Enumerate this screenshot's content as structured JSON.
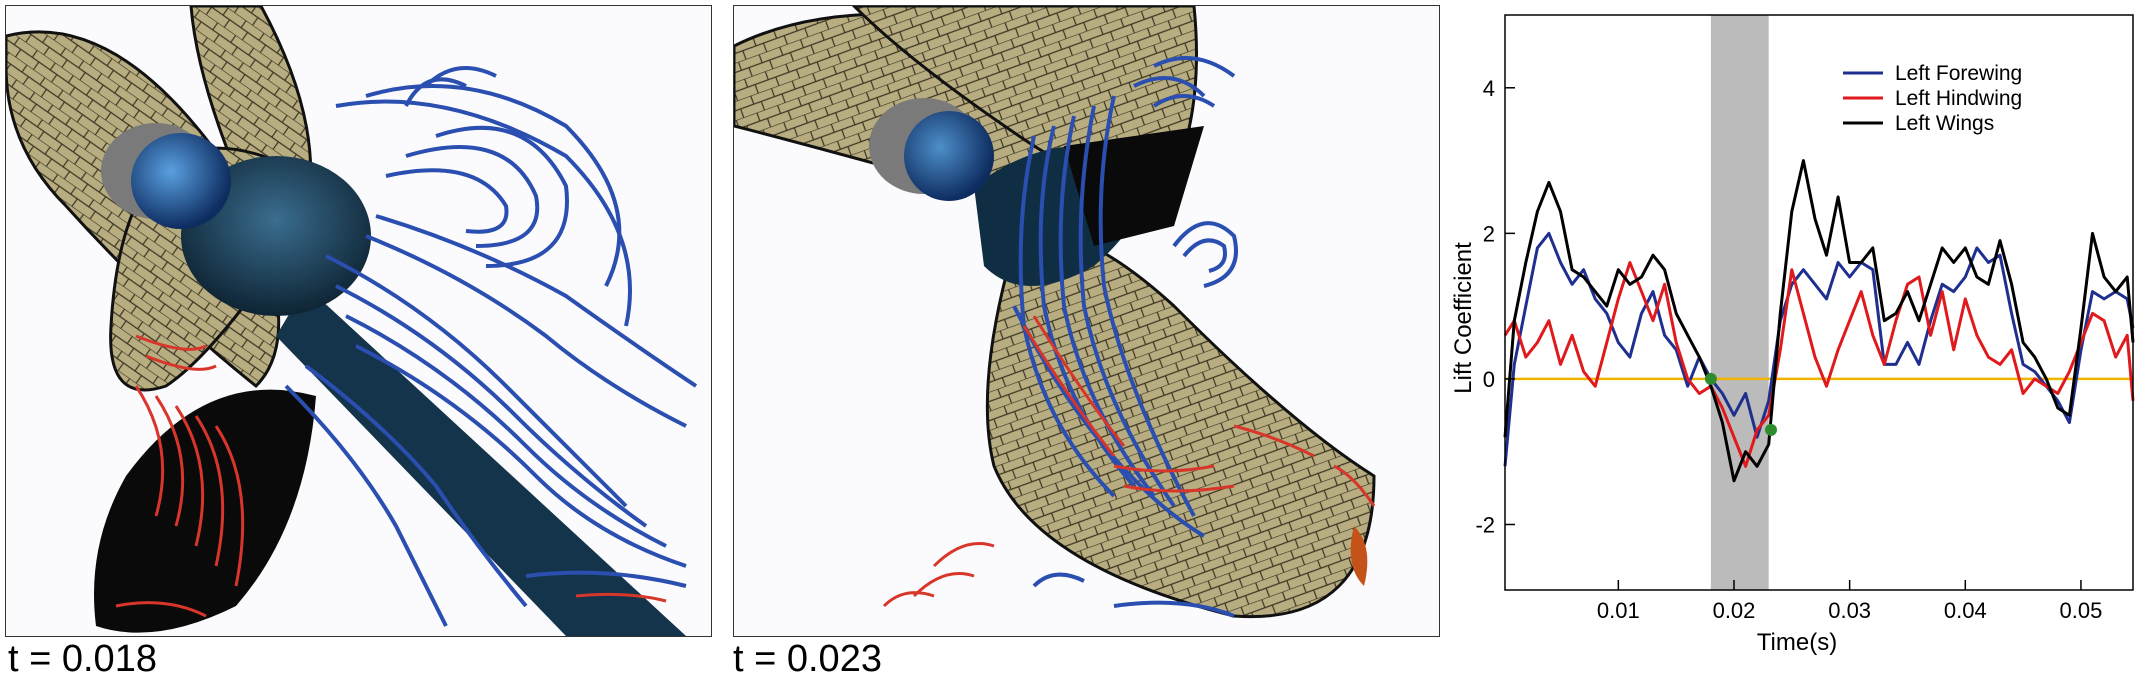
{
  "panels": [
    {
      "caption": "t = 0.018"
    },
    {
      "caption": "t = 0.023"
    }
  ],
  "colors": {
    "forewing": "#1f2f8f",
    "hindwing": "#e0191c",
    "wings": "#000000",
    "zero_line": "#f0b400",
    "shade": "#bbbbbb",
    "marker": "#2e8b2e",
    "wing_fill": "#b8ad80",
    "streamline_blue": "#2a4fb0",
    "streamline_red": "#d8362a"
  },
  "chart_data": {
    "type": "line",
    "xlabel": "Time(s)",
    "ylabel": "Lift Coefficient",
    "xlim": [
      0.0002,
      0.0545
    ],
    "ylim": [
      -2.9,
      5.0
    ],
    "xticks": [
      0.01,
      0.02,
      0.03,
      0.04,
      0.05
    ],
    "xtick_labels": [
      "0.01",
      "0.02",
      "0.03",
      "0.04",
      "0.05"
    ],
    "yticks": [
      -2,
      0,
      2,
      4
    ],
    "ytick_labels": [
      "-2",
      "0",
      "2",
      "4"
    ],
    "grid": false,
    "legend": "top-right",
    "reference_line_y": 0,
    "shaded_region": [
      0.018,
      0.023
    ],
    "markers": [
      {
        "x": 0.018,
        "y": 0.0
      },
      {
        "x": 0.0232,
        "y": -0.7
      }
    ],
    "series": [
      {
        "name": "Left Forewing",
        "x": [
          0.0002,
          0.001,
          0.002,
          0.003,
          0.004,
          0.005,
          0.006,
          0.007,
          0.008,
          0.009,
          0.01,
          0.011,
          0.012,
          0.013,
          0.014,
          0.015,
          0.016,
          0.017,
          0.018,
          0.019,
          0.02,
          0.021,
          0.022,
          0.023,
          0.024,
          0.025,
          0.026,
          0.027,
          0.028,
          0.029,
          0.03,
          0.031,
          0.032,
          0.033,
          0.034,
          0.035,
          0.036,
          0.037,
          0.038,
          0.039,
          0.04,
          0.041,
          0.042,
          0.043,
          0.044,
          0.045,
          0.046,
          0.047,
          0.048,
          0.049,
          0.05,
          0.051,
          0.052,
          0.053,
          0.054,
          0.0545
        ],
        "y": [
          -1.2,
          0.2,
          1.0,
          1.8,
          2.0,
          1.6,
          1.3,
          1.5,
          1.1,
          0.9,
          0.5,
          0.3,
          0.9,
          1.2,
          0.6,
          0.4,
          -0.1,
          0.3,
          0.0,
          -0.2,
          -0.5,
          -0.2,
          -0.8,
          -0.3,
          0.8,
          1.3,
          1.5,
          1.3,
          1.1,
          1.6,
          1.4,
          1.6,
          1.5,
          0.2,
          0.2,
          0.5,
          0.2,
          0.8,
          1.3,
          1.2,
          1.4,
          1.8,
          1.6,
          1.7,
          0.9,
          0.2,
          0.1,
          -0.1,
          -0.3,
          -0.6,
          0.4,
          1.2,
          1.1,
          1.2,
          1.1,
          0.7
        ]
      },
      {
        "name": "Left Hindwing",
        "x": [
          0.0002,
          0.001,
          0.002,
          0.003,
          0.004,
          0.005,
          0.006,
          0.007,
          0.008,
          0.009,
          0.01,
          0.011,
          0.012,
          0.013,
          0.014,
          0.015,
          0.016,
          0.017,
          0.018,
          0.019,
          0.02,
          0.021,
          0.022,
          0.023,
          0.024,
          0.025,
          0.026,
          0.027,
          0.028,
          0.029,
          0.03,
          0.031,
          0.032,
          0.033,
          0.034,
          0.035,
          0.036,
          0.037,
          0.038,
          0.039,
          0.04,
          0.041,
          0.042,
          0.043,
          0.044,
          0.045,
          0.046,
          0.047,
          0.048,
          0.049,
          0.05,
          0.051,
          0.052,
          0.053,
          0.054,
          0.0545
        ],
        "y": [
          0.6,
          0.8,
          0.3,
          0.5,
          0.8,
          0.2,
          0.6,
          0.1,
          -0.1,
          0.5,
          1.1,
          1.6,
          1.2,
          0.8,
          1.3,
          0.5,
          0.0,
          -0.2,
          -0.1,
          -0.4,
          -0.8,
          -1.2,
          -0.7,
          -0.5,
          0.4,
          1.5,
          0.9,
          0.3,
          -0.1,
          0.4,
          0.8,
          1.2,
          0.6,
          0.2,
          0.8,
          1.3,
          1.4,
          0.6,
          1.2,
          0.4,
          1.1,
          0.6,
          0.3,
          0.2,
          0.4,
          -0.2,
          0.0,
          -0.1,
          -0.2,
          0.1,
          0.5,
          0.9,
          0.8,
          0.3,
          0.6,
          -0.3
        ]
      },
      {
        "name": "Left Wings",
        "x": [
          0.0002,
          0.001,
          0.002,
          0.003,
          0.004,
          0.005,
          0.006,
          0.007,
          0.008,
          0.009,
          0.01,
          0.011,
          0.012,
          0.013,
          0.014,
          0.015,
          0.016,
          0.017,
          0.018,
          0.019,
          0.02,
          0.021,
          0.022,
          0.023,
          0.024,
          0.025,
          0.026,
          0.027,
          0.028,
          0.029,
          0.03,
          0.031,
          0.032,
          0.033,
          0.034,
          0.035,
          0.036,
          0.037,
          0.038,
          0.039,
          0.04,
          0.041,
          0.042,
          0.043,
          0.044,
          0.045,
          0.046,
          0.047,
          0.048,
          0.049,
          0.05,
          0.051,
          0.052,
          0.053,
          0.054,
          0.0545
        ],
        "y": [
          -0.8,
          0.8,
          1.6,
          2.3,
          2.7,
          2.3,
          1.5,
          1.4,
          1.2,
          1.0,
          1.5,
          1.3,
          1.4,
          1.7,
          1.5,
          0.9,
          0.6,
          0.3,
          -0.1,
          -0.6,
          -1.4,
          -1.0,
          -1.2,
          -0.9,
          0.9,
          2.3,
          3.0,
          2.2,
          1.7,
          2.5,
          1.6,
          1.6,
          1.8,
          0.8,
          0.9,
          1.2,
          0.8,
          1.3,
          1.8,
          1.6,
          1.8,
          1.4,
          1.3,
          1.9,
          1.3,
          0.5,
          0.3,
          0.0,
          -0.4,
          -0.5,
          0.7,
          2.0,
          1.4,
          1.2,
          1.4,
          0.5
        ]
      }
    ]
  }
}
